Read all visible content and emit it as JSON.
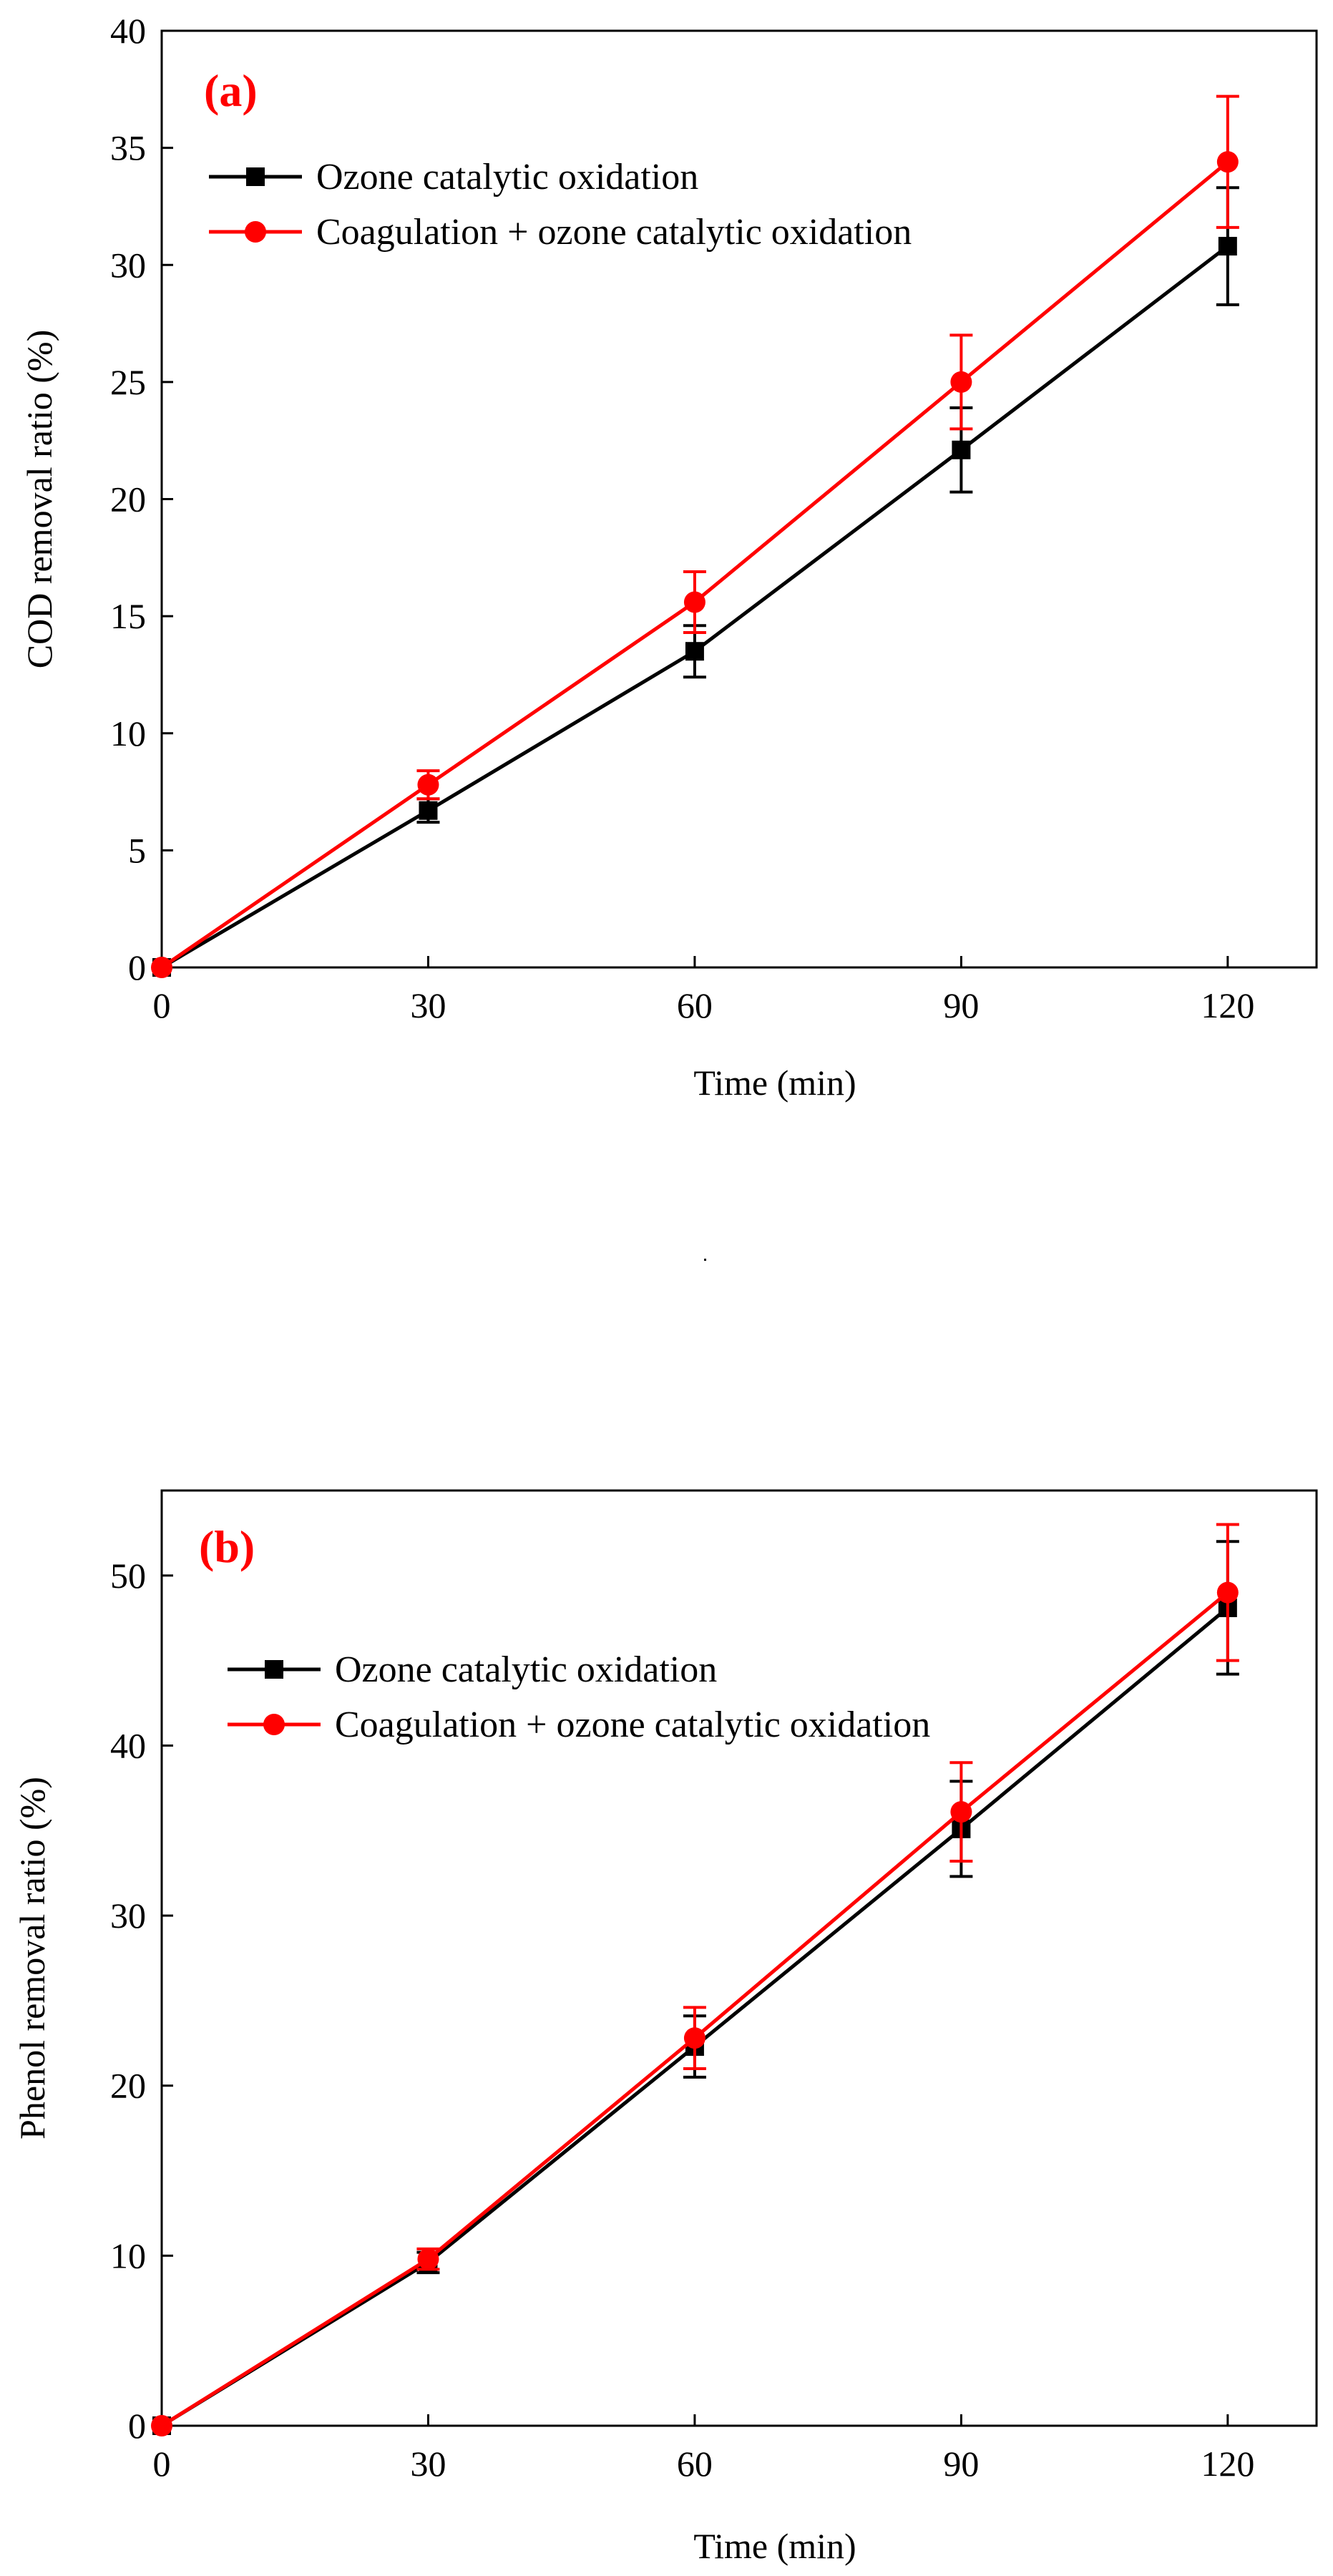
{
  "chart_data": [
    {
      "type": "line",
      "panel_label": "(a)",
      "panel_label_color": "#ff0000",
      "xlabel": "Time  (min)",
      "ylabel": "COD removal ratio (%)",
      "xlim": [
        0,
        130
      ],
      "ylim": [
        0,
        40
      ],
      "x_ticks": [
        0,
        30,
        60,
        90,
        120
      ],
      "y_ticks": [
        0,
        5,
        10,
        15,
        20,
        25,
        30,
        35,
        40
      ],
      "legend_position": "top-left",
      "series": [
        {
          "name": "Ozone catalytic oxidation",
          "color": "#000000",
          "marker": "square",
          "x": [
            0,
            30,
            60,
            90,
            120
          ],
          "y": [
            0,
            6.7,
            13.5,
            22.1,
            30.8
          ],
          "err": [
            0,
            0.5,
            1.1,
            1.8,
            2.5
          ]
        },
        {
          "name": "Coagulation + ozone catalytic oxidation",
          "color": "#ff0000",
          "marker": "circle",
          "x": [
            0,
            30,
            60,
            90,
            120
          ],
          "y": [
            0,
            7.8,
            15.6,
            25.0,
            34.4
          ],
          "err": [
            0,
            0.6,
            1.3,
            2.0,
            2.8
          ]
        }
      ]
    },
    {
      "type": "line",
      "panel_label": "(b)",
      "panel_label_color": "#ff0000",
      "xlabel": "Time  (min)",
      "ylabel": "Phenol removal ratio  (%)",
      "xlim": [
        0,
        130
      ],
      "ylim": [
        0,
        55
      ],
      "x_ticks": [
        0,
        30,
        60,
        90,
        120
      ],
      "y_ticks": [
        0,
        10,
        20,
        30,
        40,
        50
      ],
      "legend_position": "top-left",
      "series": [
        {
          "name": "Ozone catalytic oxidation",
          "color": "#000000",
          "marker": "square",
          "x": [
            0,
            30,
            60,
            90,
            120
          ],
          "y": [
            0,
            9.6,
            22.3,
            35.1,
            48.1
          ],
          "err": [
            0,
            0.6,
            1.8,
            2.8,
            3.9
          ]
        },
        {
          "name": "Coagulation + ozone catalytic oxidation",
          "color": "#ff0000",
          "marker": "circle",
          "x": [
            0,
            30,
            60,
            90,
            120
          ],
          "y": [
            0,
            9.8,
            22.8,
            36.1,
            49.0
          ],
          "err": [
            0,
            0.6,
            1.8,
            2.9,
            4.0
          ]
        }
      ]
    }
  ]
}
